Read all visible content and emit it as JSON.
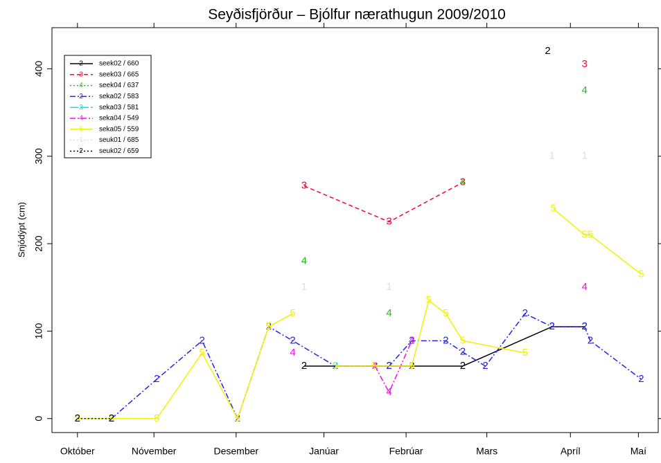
{
  "chart_data": {
    "type": "line",
    "title": "Seyðisfjörður – Bjólfur nærathugun 2009/2010",
    "y_label": "Snjódýpt (cm)",
    "xlim": [
      11,
      225
    ],
    "xticks": [
      {
        "value": 20,
        "label": "Október"
      },
      {
        "value": 47,
        "label": "Nóvember"
      },
      {
        "value": 76,
        "label": "Desember"
      },
      {
        "value": 107,
        "label": "Janúar"
      },
      {
        "value": 136,
        "label": "Febrúar"
      },
      {
        "value": 164.5,
        "label": "Mars"
      },
      {
        "value": 194,
        "label": "Apríl"
      },
      {
        "value": 218,
        "label": "Maí"
      }
    ],
    "ylim": [
      -16,
      447
    ],
    "yticks": [
      0,
      100,
      200,
      300,
      400
    ],
    "legend": "upper left",
    "series": [
      {
        "name": "seek02 / 660",
        "marker": "2",
        "color": "#000000",
        "dash": "none",
        "x": [
          100,
          111,
          125,
          130,
          138,
          156,
          187.5,
          199
        ],
        "values": [
          60,
          60,
          60,
          60,
          60,
          60,
          105,
          105
        ]
      },
      {
        "name": "seek03 / 665",
        "marker": "3",
        "color": "#ff0033",
        "dash": "6,4",
        "x": [
          100,
          130,
          156,
          178,
          199
        ],
        "values": [
          266,
          225,
          270,
          null,
          405
        ]
      },
      {
        "name": "seek04 / 637",
        "marker": "4",
        "color": "#22bb22",
        "dash": "2,3",
        "x": [
          100,
          115,
          130,
          140,
          156,
          178,
          199
        ],
        "values": [
          180,
          null,
          120,
          null,
          270,
          null,
          375
        ]
      },
      {
        "name": "seka02 / 583",
        "marker": "2",
        "color": "#2222ee",
        "dash": "8,3,2,3",
        "x": [
          32,
          48,
          64,
          76.5,
          87.5,
          96,
          111,
          125,
          130,
          138,
          150,
          156,
          164,
          178,
          187.5,
          199,
          201,
          219
        ],
        "values": [
          0,
          45,
          89,
          0,
          105,
          89,
          60,
          60,
          60,
          89,
          89,
          76,
          60,
          120,
          105,
          105,
          89,
          45
        ]
      },
      {
        "name": "seka03 / 581",
        "marker": "3",
        "color": "#00e5ee",
        "dash": "12,3",
        "x": [
          32,
          70,
          111
        ],
        "values": [
          0,
          null,
          60
        ]
      },
      {
        "name": "seka04 / 549",
        "marker": "4",
        "color": "#ff00ff",
        "dash": "8,3,2,3",
        "x": [
          96,
          110,
          125,
          130,
          138,
          170,
          199
        ],
        "values": [
          75,
          null,
          60,
          30,
          89,
          null,
          150
        ]
      },
      {
        "name": "seka05 / 559",
        "marker": "5",
        "color": "#f2f200",
        "dash": "none",
        "x": [
          20,
          32,
          48,
          64,
          76.5,
          87.5,
          96,
          100,
          111,
          125,
          138,
          144,
          150,
          156,
          178,
          183,
          188,
          199,
          201,
          219
        ],
        "values": [
          0,
          0,
          0,
          75,
          0,
          105,
          120,
          null,
          60,
          60,
          60,
          135,
          120,
          89,
          75,
          null,
          240,
          210,
          210,
          165
        ]
      },
      {
        "name": "seuk01 / 685",
        "marker": "1",
        "color": "#dddddd",
        "dash": "2,3",
        "x": [
          100,
          115,
          130,
          160,
          187.5,
          193,
          199
        ],
        "values": [
          150,
          null,
          150,
          null,
          300,
          null,
          300
        ]
      },
      {
        "name": "seuk02 / 659",
        "marker": "2",
        "color": "#000000",
        "dash": "2,3",
        "x": [
          20,
          32,
          100,
          186
        ],
        "values": [
          0,
          0,
          null,
          420
        ]
      }
    ]
  }
}
